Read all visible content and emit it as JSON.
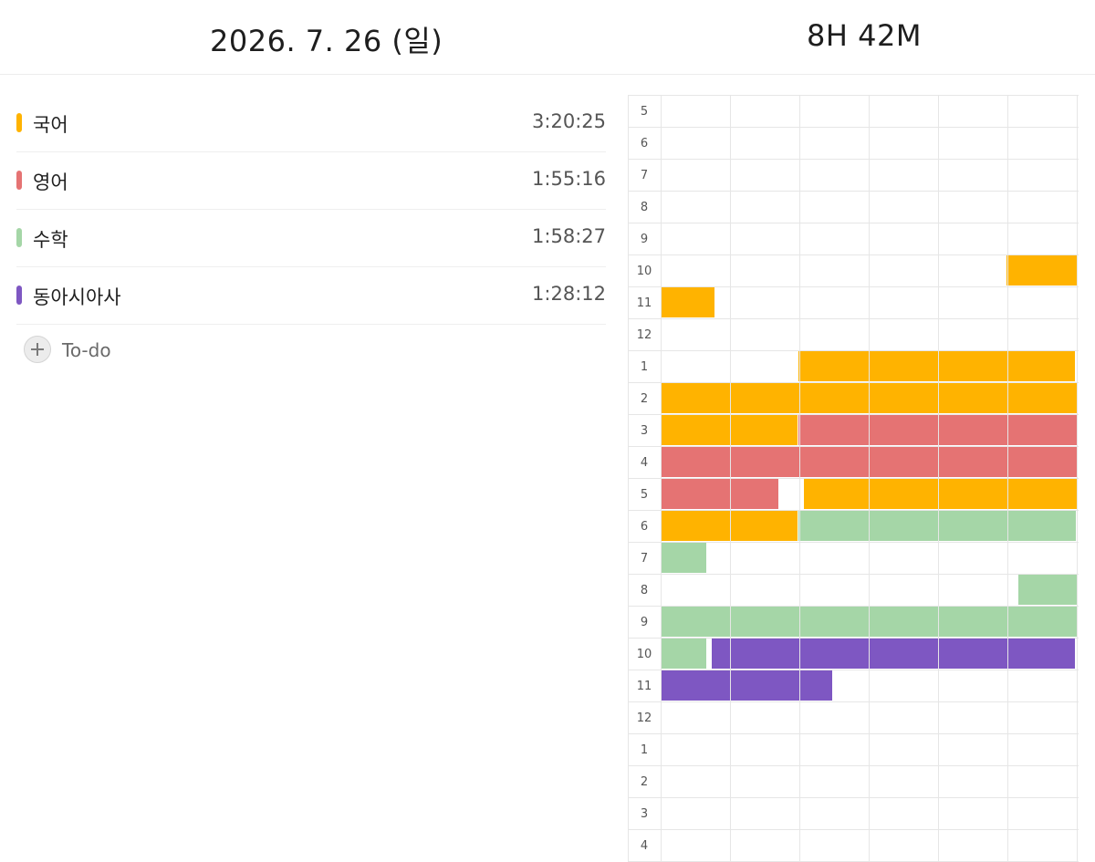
{
  "header": {
    "date": "2026. 7. 26 (일)",
    "total": "8H 42M"
  },
  "subjects": [
    {
      "name": "국어",
      "time": "3:20:25",
      "color": "#FFB300"
    },
    {
      "name": "영어",
      "time": "1:55:16",
      "color": "#E57373"
    },
    {
      "name": "수학",
      "time": "1:58:27",
      "color": "#A5D6A7"
    },
    {
      "name": "동아시아사",
      "time": "1:28:12",
      "color": "#7E57C2"
    }
  ],
  "todo": {
    "label": "To-do",
    "icon": "plus-icon"
  },
  "timetable": {
    "hours": [
      "5",
      "6",
      "7",
      "8",
      "9",
      "10",
      "11",
      "12",
      "1",
      "2",
      "3",
      "4",
      "5",
      "6",
      "7",
      "8",
      "9",
      "10",
      "11",
      "12",
      "1",
      "2",
      "3",
      "4"
    ],
    "blocks": [
      {
        "subject": 0,
        "row": 5,
        "start": 8.3,
        "end": 10.0
      },
      {
        "subject": 0,
        "row": 6,
        "start": 0,
        "end": 1.3
      },
      {
        "subject": 0,
        "row": 8,
        "start": 3.3,
        "end": 9.95
      },
      {
        "subject": 0,
        "row": 9,
        "start": 0,
        "end": 10.0
      },
      {
        "subject": 0,
        "row": 10,
        "start": 0,
        "end": 3.3
      },
      {
        "subject": 1,
        "row": 10,
        "start": 3.3,
        "end": 10.0
      },
      {
        "subject": 1,
        "row": 11,
        "start": 0,
        "end": 10.0
      },
      {
        "subject": 1,
        "row": 12,
        "start": 0,
        "end": 2.83
      },
      {
        "subject": 0,
        "row": 12,
        "start": 3.43,
        "end": 10.0
      },
      {
        "subject": 0,
        "row": 13,
        "start": 0,
        "end": 3.3
      },
      {
        "subject": 2,
        "row": 13,
        "start": 3.3,
        "end": 9.97
      },
      {
        "subject": 2,
        "row": 14,
        "start": 0,
        "end": 1.1
      },
      {
        "subject": 2,
        "row": 15,
        "start": 8.57,
        "end": 10.0
      },
      {
        "subject": 2,
        "row": 16,
        "start": 0,
        "end": 10.0
      },
      {
        "subject": 2,
        "row": 17,
        "start": 0,
        "end": 1.1
      },
      {
        "subject": 3,
        "row": 17,
        "start": 1.2,
        "end": 9.95
      },
      {
        "subject": 3,
        "row": 18,
        "start": 0,
        "end": 4.13
      }
    ]
  }
}
